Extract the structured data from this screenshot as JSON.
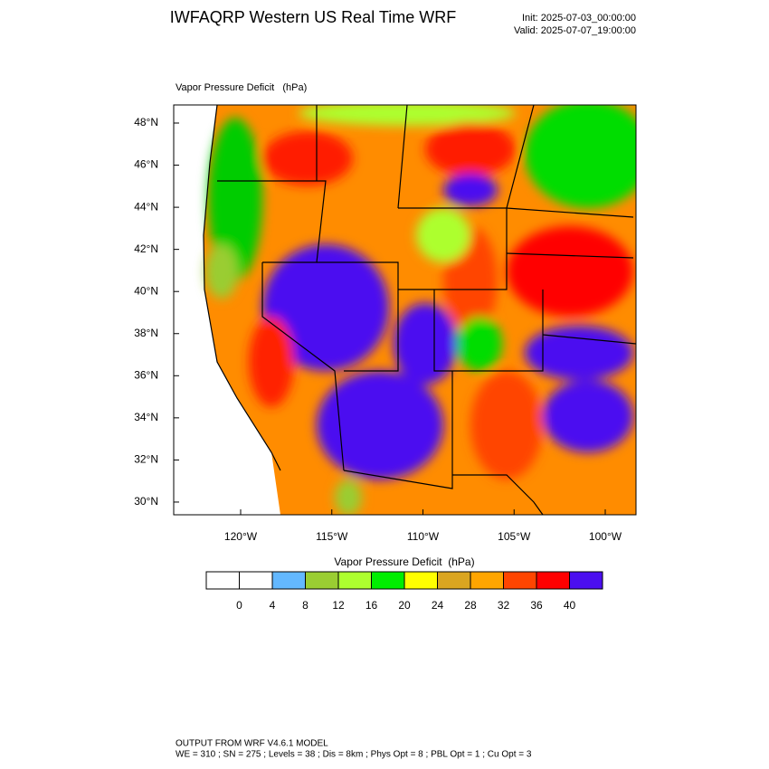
{
  "header": {
    "title": "IWFAQRP Western US Real Time WRF",
    "init": "Init: 2025-07-03_00:00:00",
    "valid": "Valid: 2025-07-07_19:00:00"
  },
  "map": {
    "field_label": "Vapor Pressure Deficit   (hPa)",
    "lat_labels": [
      "48°N",
      "46°N",
      "44°N",
      "42°N",
      "40°N",
      "38°N",
      "36°N",
      "34°N",
      "32°N",
      "30°N"
    ],
    "lon_labels": [
      "120°W",
      "115°W",
      "110°W",
      "105°W",
      "100°W"
    ]
  },
  "colorbar": {
    "title": "Vapor Pressure Deficit  (hPa)",
    "colors": [
      "#ffffff",
      "#ffffff",
      "#63b8ff",
      "#9acd32",
      "#adff2f",
      "#00ee00",
      "#ffff00",
      "#daa520",
      "#ffa500",
      "#ff4500",
      "#ff0000",
      "#4b0ff0"
    ],
    "labels": [
      "0",
      "4",
      "8",
      "12",
      "16",
      "20",
      "24",
      "28",
      "32",
      "36",
      "40"
    ]
  },
  "footer": {
    "line1": "OUTPUT FROM WRF V4.6.1 MODEL",
    "line2": "WE = 310 ; SN = 275 ; Levels = 38 ; Dis = 8km ; Phys Opt = 8 ; PBL Opt = 1 ; Cu Opt = 3"
  }
}
